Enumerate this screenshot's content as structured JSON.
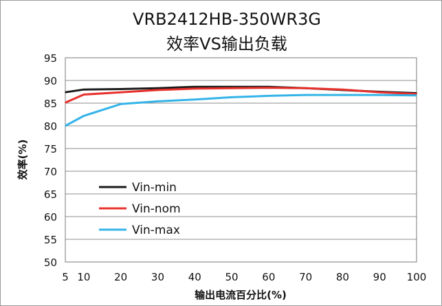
{
  "chart_data": {
    "type": "line",
    "title": "VRB2412HB-350WR3G",
    "subtitle": "效率VS输出负载",
    "xlabel": "输出电流百分比(%)",
    "ylabel": "效率(%)",
    "xlim": [
      5,
      100
    ],
    "ylim": [
      50,
      95
    ],
    "x_ticks": [
      "5",
      "10",
      "20",
      "30",
      "40",
      "50",
      "60",
      "70",
      "80",
      "90",
      "100"
    ],
    "y_ticks": [
      "95",
      "90",
      "85",
      "80",
      "75",
      "70",
      "65",
      "60",
      "55",
      "50"
    ],
    "grid": "horizontal",
    "legend_position": "lower-left",
    "x": [
      5,
      10,
      20,
      30,
      40,
      50,
      60,
      70,
      80,
      90,
      100
    ],
    "series": [
      {
        "name": "Vin-min",
        "color": "#1a1a1a",
        "values": [
          87.4,
          88.0,
          88.1,
          88.3,
          88.6,
          88.6,
          88.6,
          88.3,
          87.9,
          87.5,
          87.2
        ]
      },
      {
        "name": "Vin-nom",
        "color": "#e8302c",
        "values": [
          85.1,
          86.9,
          87.4,
          87.9,
          88.2,
          88.3,
          88.4,
          88.3,
          88.0,
          87.4,
          87.0
        ]
      },
      {
        "name": "Vin-max",
        "color": "#33b3e8",
        "values": [
          80.0,
          82.2,
          84.8,
          85.4,
          85.8,
          86.3,
          86.6,
          86.8,
          86.8,
          86.8,
          86.7
        ]
      }
    ]
  }
}
